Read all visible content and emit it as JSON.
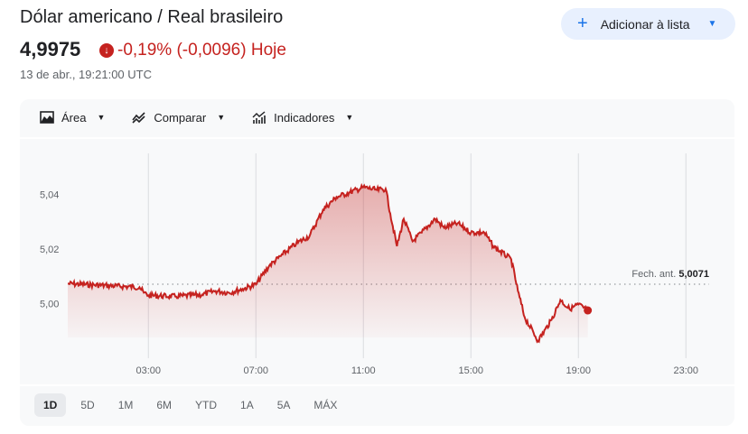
{
  "header": {
    "title": "Dólar americano / Real brasileiro",
    "price": "4,9975",
    "change": "-0,19% (-0,0096) Hoje",
    "timestamp": "13 de abr., 19:21:00 UTC",
    "add_button": "Adicionar à lista"
  },
  "toolbar": {
    "area": "Área",
    "compare": "Comparar",
    "indicators": "Indicadores"
  },
  "ranges": [
    "1D",
    "5D",
    "1M",
    "6M",
    "YTD",
    "1A",
    "5A",
    "MÁX"
  ],
  "selected_range": "1D",
  "colors": {
    "line": "#c5221f",
    "accent": "#1a73e8"
  },
  "chart_data": {
    "type": "area",
    "ylim": [
      4.98,
      5.055
    ],
    "xlim_hours": [
      0,
      24
    ],
    "y_ticks": [
      "5,04",
      "5,02",
      "5,00"
    ],
    "y_tick_values": [
      5.04,
      5.02,
      5.0
    ],
    "x_ticks": [
      "03:00",
      "07:00",
      "11:00",
      "15:00",
      "19:00",
      "23:00"
    ],
    "x_tick_values": [
      3,
      7,
      11,
      15,
      19,
      23
    ],
    "previous_close_label": "Fech. ant.",
    "previous_close": "5,0071",
    "previous_close_value": 5.0071,
    "points": [
      [
        0,
        5.0073
      ],
      [
        2.67,
        5.006
      ],
      [
        2.83,
        5.004
      ],
      [
        3,
        5.003
      ],
      [
        4,
        5.0026
      ],
      [
        5,
        5.0033
      ],
      [
        5.5,
        5.0046
      ],
      [
        6,
        5.004
      ],
      [
        6.5,
        5.0053
      ],
      [
        7,
        5.007
      ],
      [
        7.5,
        5.0139
      ],
      [
        8,
        5.018
      ],
      [
        8.5,
        5.022
      ],
      [
        9,
        5.0248
      ],
      [
        9.5,
        5.0344
      ],
      [
        10,
        5.039
      ],
      [
        10.5,
        5.0407
      ],
      [
        11,
        5.0426
      ],
      [
        11.5,
        5.0416
      ],
      [
        11.83,
        5.042
      ],
      [
        12,
        5.033
      ],
      [
        12.25,
        5.021
      ],
      [
        12.5,
        5.031
      ],
      [
        12.83,
        5.0228
      ],
      [
        13.17,
        5.026
      ],
      [
        13.67,
        5.031
      ],
      [
        14,
        5.0278
      ],
      [
        14.5,
        5.0294
      ],
      [
        15,
        5.026
      ],
      [
        15.5,
        5.026
      ],
      [
        15.83,
        5.021
      ],
      [
        16.5,
        5.0162
      ],
      [
        16.75,
        5.0046
      ],
      [
        17,
        4.995
      ],
      [
        17.5,
        4.9864
      ],
      [
        18,
        4.994
      ],
      [
        18.33,
        5.0013
      ],
      [
        18.67,
        4.998
      ],
      [
        19,
        4.9997
      ],
      [
        19.35,
        4.9975
      ]
    ]
  }
}
